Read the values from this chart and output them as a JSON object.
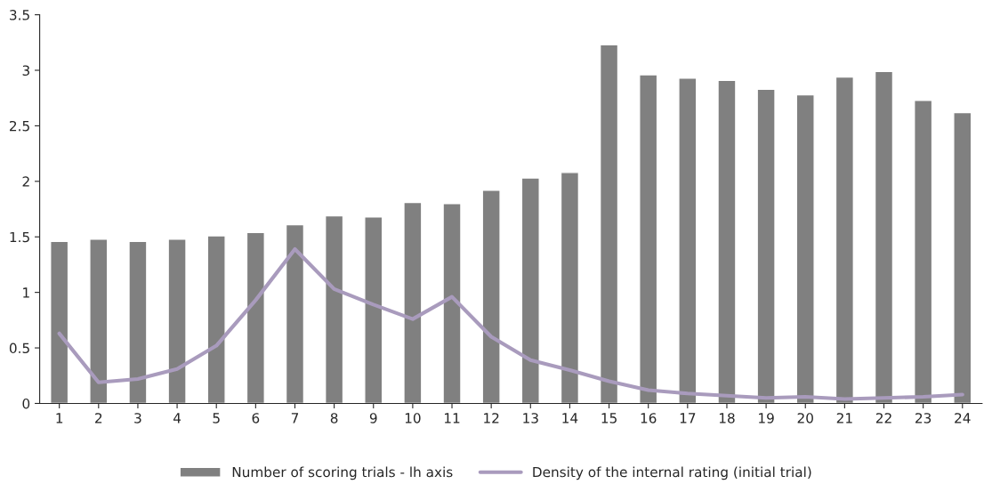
{
  "chart_data": {
    "type": "bar",
    "categories": [
      "1",
      "2",
      "3",
      "4",
      "5",
      "6",
      "7",
      "8",
      "9",
      "10",
      "11",
      "12",
      "13",
      "14",
      "15",
      "16",
      "17",
      "18",
      "19",
      "20",
      "21",
      "22",
      "23",
      "24"
    ],
    "series": [
      {
        "name": "Number of scoring trials - lh axis",
        "color": "#808080",
        "values": [
          1.46,
          1.48,
          1.46,
          1.48,
          1.51,
          1.54,
          1.61,
          1.69,
          1.68,
          1.81,
          1.8,
          1.92,
          2.03,
          2.08,
          3.23,
          2.96,
          2.93,
          2.91,
          2.83,
          2.78,
          2.94,
          2.99,
          2.73,
          2.62
        ]
      },
      {
        "name": "Density of the internal rating (initial trial)",
        "type": "line",
        "color": "#a99bbd",
        "values": [
          0.63,
          0.19,
          0.22,
          0.31,
          0.52,
          0.93,
          1.39,
          1.03,
          0.89,
          0.76,
          0.96,
          0.6,
          0.39,
          0.3,
          0.2,
          0.12,
          0.09,
          0.07,
          0.05,
          0.06,
          0.04,
          0.05,
          0.06,
          0.08
        ]
      }
    ],
    "ylim": [
      0,
      3.5
    ],
    "yticks": [
      0,
      0.5,
      1,
      1.5,
      2,
      2.5,
      3,
      3.5
    ],
    "grid": false,
    "legend": "bottom",
    "marker": "none",
    "line_style": "solid"
  }
}
